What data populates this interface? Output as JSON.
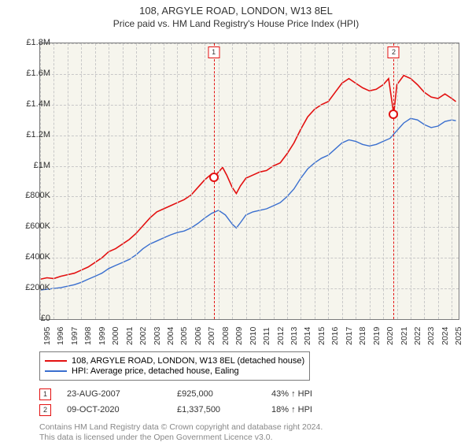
{
  "title": "108, ARGYLE ROAD, LONDON, W13 8EL",
  "subtitle": "Price paid vs. HM Land Registry's House Price Index (HPI)",
  "chart": {
    "type": "line",
    "background_color": "#f6f5ed",
    "border_color": "#7a7a7a",
    "grid_color": "#c8c8c8",
    "xlim": [
      1995,
      2025.5
    ],
    "ylim": [
      0,
      1800000
    ],
    "ytick_step": 200000,
    "yticks": [
      "£0",
      "£200K",
      "£400K",
      "£600K",
      "£800K",
      "£1M",
      "£1.2M",
      "£1.4M",
      "£1.6M",
      "£1.8M"
    ],
    "xticks": [
      "1995",
      "1996",
      "1997",
      "1998",
      "1999",
      "2000",
      "2001",
      "2002",
      "2003",
      "2004",
      "2005",
      "2006",
      "2007",
      "2008",
      "2009",
      "2010",
      "2011",
      "2012",
      "2013",
      "2014",
      "2015",
      "2016",
      "2017",
      "2018",
      "2019",
      "2020",
      "2021",
      "2022",
      "2023",
      "2024",
      "2025"
    ],
    "series": [
      {
        "name": "property",
        "label": "108, ARGYLE ROAD, LONDON, W13 8EL (detached house)",
        "color": "#e31010",
        "line_width": 1.6,
        "points": [
          [
            1995,
            260000
          ],
          [
            1995.5,
            270000
          ],
          [
            1996,
            265000
          ],
          [
            1996.5,
            280000
          ],
          [
            1997,
            290000
          ],
          [
            1997.5,
            300000
          ],
          [
            1998,
            320000
          ],
          [
            1998.5,
            340000
          ],
          [
            1999,
            370000
          ],
          [
            1999.5,
            400000
          ],
          [
            2000,
            440000
          ],
          [
            2000.5,
            460000
          ],
          [
            2001,
            490000
          ],
          [
            2001.5,
            520000
          ],
          [
            2002,
            560000
          ],
          [
            2002.5,
            610000
          ],
          [
            2003,
            660000
          ],
          [
            2003.5,
            700000
          ],
          [
            2004,
            720000
          ],
          [
            2004.5,
            740000
          ],
          [
            2005,
            760000
          ],
          [
            2005.5,
            780000
          ],
          [
            2006,
            810000
          ],
          [
            2006.5,
            860000
          ],
          [
            2007,
            910000
          ],
          [
            2007.4,
            940000
          ],
          [
            2007.65,
            925000
          ],
          [
            2008,
            960000
          ],
          [
            2008.3,
            990000
          ],
          [
            2008.6,
            940000
          ],
          [
            2009,
            860000
          ],
          [
            2009.3,
            820000
          ],
          [
            2009.6,
            870000
          ],
          [
            2010,
            920000
          ],
          [
            2010.5,
            940000
          ],
          [
            2011,
            960000
          ],
          [
            2011.5,
            970000
          ],
          [
            2012,
            1000000
          ],
          [
            2012.5,
            1020000
          ],
          [
            2013,
            1080000
          ],
          [
            2013.5,
            1150000
          ],
          [
            2014,
            1240000
          ],
          [
            2014.5,
            1320000
          ],
          [
            2015,
            1370000
          ],
          [
            2015.5,
            1400000
          ],
          [
            2016,
            1420000
          ],
          [
            2016.5,
            1480000
          ],
          [
            2017,
            1540000
          ],
          [
            2017.5,
            1570000
          ],
          [
            2018,
            1540000
          ],
          [
            2018.5,
            1510000
          ],
          [
            2019,
            1490000
          ],
          [
            2019.5,
            1500000
          ],
          [
            2020,
            1530000
          ],
          [
            2020.4,
            1570000
          ],
          [
            2020.77,
            1337500
          ],
          [
            2021,
            1530000
          ],
          [
            2021.5,
            1590000
          ],
          [
            2022,
            1570000
          ],
          [
            2022.5,
            1530000
          ],
          [
            2023,
            1480000
          ],
          [
            2023.5,
            1450000
          ],
          [
            2024,
            1440000
          ],
          [
            2024.5,
            1470000
          ],
          [
            2025,
            1440000
          ],
          [
            2025.3,
            1420000
          ]
        ]
      },
      {
        "name": "hpi",
        "label": "HPI: Average price, detached house, Ealing",
        "color": "#3a6fcf",
        "line_width": 1.4,
        "points": [
          [
            1995,
            190000
          ],
          [
            1995.5,
            195000
          ],
          [
            1996,
            200000
          ],
          [
            1996.5,
            205000
          ],
          [
            1997,
            215000
          ],
          [
            1997.5,
            225000
          ],
          [
            1998,
            240000
          ],
          [
            1998.5,
            260000
          ],
          [
            1999,
            280000
          ],
          [
            1999.5,
            300000
          ],
          [
            2000,
            330000
          ],
          [
            2000.5,
            350000
          ],
          [
            2001,
            370000
          ],
          [
            2001.5,
            390000
          ],
          [
            2002,
            420000
          ],
          [
            2002.5,
            460000
          ],
          [
            2003,
            490000
          ],
          [
            2003.5,
            510000
          ],
          [
            2004,
            530000
          ],
          [
            2004.5,
            550000
          ],
          [
            2005,
            565000
          ],
          [
            2005.5,
            575000
          ],
          [
            2006,
            595000
          ],
          [
            2006.5,
            625000
          ],
          [
            2007,
            660000
          ],
          [
            2007.5,
            690000
          ],
          [
            2008,
            710000
          ],
          [
            2008.5,
            680000
          ],
          [
            2009,
            620000
          ],
          [
            2009.3,
            595000
          ],
          [
            2009.6,
            630000
          ],
          [
            2010,
            680000
          ],
          [
            2010.5,
            700000
          ],
          [
            2011,
            710000
          ],
          [
            2011.5,
            720000
          ],
          [
            2012,
            740000
          ],
          [
            2012.5,
            760000
          ],
          [
            2013,
            800000
          ],
          [
            2013.5,
            850000
          ],
          [
            2014,
            920000
          ],
          [
            2014.5,
            980000
          ],
          [
            2015,
            1020000
          ],
          [
            2015.5,
            1050000
          ],
          [
            2016,
            1070000
          ],
          [
            2016.5,
            1110000
          ],
          [
            2017,
            1150000
          ],
          [
            2017.5,
            1170000
          ],
          [
            2018,
            1160000
          ],
          [
            2018.5,
            1140000
          ],
          [
            2019,
            1130000
          ],
          [
            2019.5,
            1140000
          ],
          [
            2020,
            1160000
          ],
          [
            2020.5,
            1180000
          ],
          [
            2021,
            1230000
          ],
          [
            2021.5,
            1280000
          ],
          [
            2022,
            1310000
          ],
          [
            2022.5,
            1300000
          ],
          [
            2023,
            1270000
          ],
          [
            2023.5,
            1250000
          ],
          [
            2024,
            1260000
          ],
          [
            2024.5,
            1290000
          ],
          [
            2025,
            1300000
          ],
          [
            2025.3,
            1295000
          ]
        ]
      }
    ],
    "markers": [
      {
        "id": "1",
        "x": 2007.65,
        "y": 925000,
        "color": "#e31010"
      },
      {
        "id": "2",
        "x": 2020.77,
        "y": 1337500,
        "color": "#e31010"
      }
    ]
  },
  "legend": {
    "items": [
      {
        "color": "#e31010",
        "label": "108, ARGYLE ROAD, LONDON, W13 8EL (detached house)"
      },
      {
        "color": "#3a6fcf",
        "label": "HPI: Average price, detached house, Ealing"
      }
    ]
  },
  "transactions": [
    {
      "id": "1",
      "color": "#e31010",
      "date": "23-AUG-2007",
      "price": "£925,000",
      "diff": "43% ↑ HPI"
    },
    {
      "id": "2",
      "color": "#e31010",
      "date": "09-OCT-2020",
      "price": "£1,337,500",
      "diff": "18% ↑ HPI"
    }
  ],
  "attribution": {
    "line1": "Contains HM Land Registry data © Crown copyright and database right 2024.",
    "line2": "This data is licensed under the Open Government Licence v3.0."
  }
}
